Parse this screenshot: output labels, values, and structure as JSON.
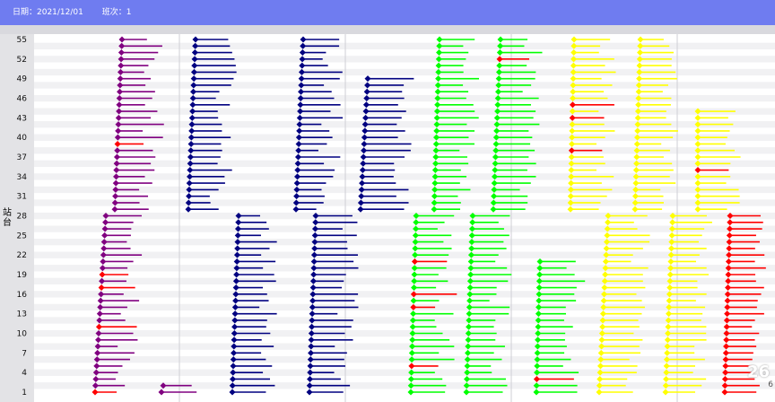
{
  "header": {
    "date_label": "日期：2021/12/01",
    "run_label": "班次：1"
  },
  "corner": {
    "big": "26",
    "small": "6"
  },
  "chart_data": {
    "type": "timeline",
    "ylabel": "站台",
    "y_ticks": [
      "55",
      "52",
      "49",
      "46",
      "43",
      "40",
      "37",
      "34",
      "31",
      "28",
      "25",
      "22",
      "19",
      "16",
      "13",
      "10",
      "7",
      "4",
      "1"
    ],
    "grid": true,
    "series": [
      {
        "name": "purple-upper",
        "color": "#800080",
        "accent": "#ff0000",
        "block": "upper",
        "stations": [
          29,
          55
        ]
      },
      {
        "name": "navy-upper-1",
        "color": "#000080",
        "accent": null,
        "block": "upper",
        "stations": [
          29,
          55
        ]
      },
      {
        "name": "navy-upper-2",
        "color": "#000080",
        "accent": null,
        "block": "upper",
        "stations": [
          29,
          55
        ]
      },
      {
        "name": "navy-upper-3",
        "color": "#000080",
        "accent": null,
        "block": "upper",
        "stations": [
          29,
          49
        ]
      },
      {
        "name": "green-upper-1",
        "color": "#00ff00",
        "accent": null,
        "block": "upper",
        "stations": [
          29,
          55
        ]
      },
      {
        "name": "green-upper-2",
        "color": "#00ff00",
        "accent": "#ff0000",
        "block": "upper",
        "stations": [
          29,
          55
        ]
      },
      {
        "name": "yellow-upper-1",
        "color": "#ffff00",
        "accent": "#ff0000",
        "block": "upper",
        "stations": [
          29,
          55
        ]
      },
      {
        "name": "yellow-upper-2",
        "color": "#ffff00",
        "accent": null,
        "block": "upper",
        "stations": [
          29,
          55
        ]
      },
      {
        "name": "yellow-upper-3",
        "color": "#ffff00",
        "accent": "#ff0000",
        "block": "upper",
        "stations": [
          29,
          44
        ]
      },
      {
        "name": "purple-lower",
        "color": "#800080",
        "accent": "#ff0000",
        "block": "lower",
        "stations": [
          1,
          28
        ]
      },
      {
        "name": "navy-lower-1",
        "color": "#000080",
        "accent": null,
        "block": "lower",
        "stations": [
          1,
          28
        ]
      },
      {
        "name": "navy-lower-2",
        "color": "#000080",
        "accent": null,
        "block": "lower",
        "stations": [
          1,
          28
        ]
      },
      {
        "name": "green-lower-1",
        "color": "#00ff00",
        "accent": "#ff0000",
        "block": "lower",
        "stations": [
          1,
          28
        ]
      },
      {
        "name": "green-lower-2",
        "color": "#00ff00",
        "accent": null,
        "block": "lower",
        "stations": [
          1,
          28
        ]
      },
      {
        "name": "green-lower-3",
        "color": "#00ff00",
        "accent": "#ff0000",
        "block": "lower",
        "stations": [
          1,
          21
        ]
      },
      {
        "name": "yellow-lower-1",
        "color": "#ffff00",
        "accent": null,
        "block": "lower",
        "stations": [
          1,
          28
        ]
      },
      {
        "name": "yellow-lower-2",
        "color": "#ffff00",
        "accent": null,
        "block": "lower",
        "stations": [
          1,
          28
        ]
      },
      {
        "name": "red-lower",
        "color": "#ff0000",
        "accent": null,
        "block": "lower",
        "stations": [
          1,
          28
        ]
      },
      {
        "name": "purple-bottom",
        "color": "#800080",
        "accent": null,
        "block": "lower",
        "stations": [
          1,
          2
        ]
      }
    ]
  }
}
